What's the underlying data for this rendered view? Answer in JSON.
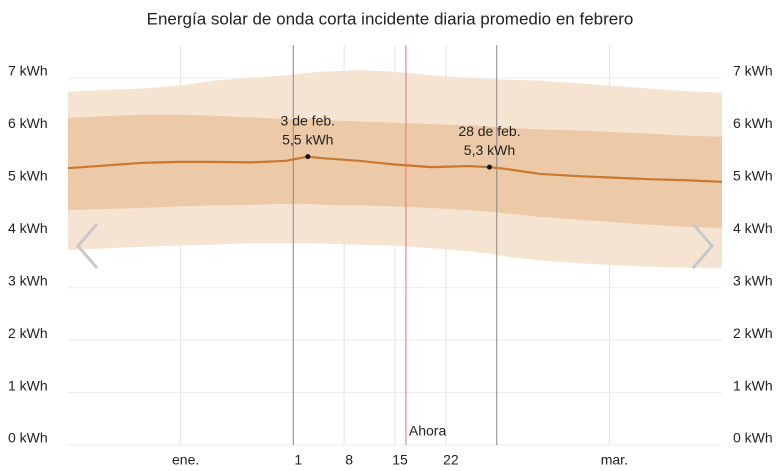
{
  "chart_data": {
    "type": "band-line",
    "title": "Energía solar de onda corta incidente diaria promedio en febrero",
    "x": [
      0,
      5,
      10,
      15,
      20,
      25,
      30,
      33,
      35,
      40,
      45,
      50,
      55,
      58,
      60,
      65,
      70,
      75,
      80,
      85,
      90
    ],
    "xlim": [
      0,
      90
    ],
    "xticks": [
      {
        "value": 15.5,
        "label": "ene."
      },
      {
        "value": 31,
        "label": "1"
      },
      {
        "value": 38,
        "label": "8"
      },
      {
        "value": 45,
        "label": "15"
      },
      {
        "value": 52,
        "label": "22"
      },
      {
        "value": 74.5,
        "label": "mar."
      }
    ],
    "month_lines": [
      31,
      59
    ],
    "now": {
      "x": 46.5,
      "label": "Ahora"
    },
    "ylim": [
      0,
      7
    ],
    "yticks": [
      {
        "value": 0,
        "label": "0 kWh"
      },
      {
        "value": 1,
        "label": "1 kWh"
      },
      {
        "value": 2,
        "label": "2 kWh"
      },
      {
        "value": 3,
        "label": "3 kWh"
      },
      {
        "value": 4,
        "label": "4 kWh"
      },
      {
        "value": 5,
        "label": "5 kWh"
      },
      {
        "value": 6,
        "label": "6 kWh"
      },
      {
        "value": 7,
        "label": "7 kWh"
      }
    ],
    "bands": [
      {
        "color": "#f6e4d3",
        "upper": [
          6.74,
          6.77,
          6.8,
          6.85,
          6.95,
          7.0,
          7.05,
          7.1,
          7.12,
          7.15,
          7.12,
          7.05,
          7.0,
          6.98,
          6.97,
          6.95,
          6.9,
          6.85,
          6.8,
          6.75,
          6.72
        ],
        "lower": [
          3.72,
          3.75,
          3.78,
          3.8,
          3.82,
          3.85,
          3.85,
          3.85,
          3.84,
          3.82,
          3.8,
          3.75,
          3.7,
          3.65,
          3.6,
          3.52,
          3.47,
          3.43,
          3.4,
          3.38,
          3.38
        ]
      },
      {
        "color": "#eccaa8",
        "upper": [
          6.24,
          6.27,
          6.3,
          6.3,
          6.28,
          6.25,
          6.22,
          6.22,
          6.2,
          6.17,
          6.15,
          6.12,
          6.1,
          6.08,
          6.05,
          6.02,
          6.0,
          5.97,
          5.94,
          5.9,
          5.88
        ],
        "lower": [
          4.48,
          4.5,
          4.52,
          4.55,
          4.57,
          4.58,
          4.6,
          4.6,
          4.58,
          4.57,
          4.55,
          4.52,
          4.48,
          4.45,
          4.42,
          4.35,
          4.3,
          4.25,
          4.2,
          4.16,
          4.14
        ]
      }
    ],
    "color": "#c8782f",
    "values": [
      5.28,
      5.33,
      5.38,
      5.4,
      5.4,
      5.39,
      5.42,
      5.5,
      5.47,
      5.42,
      5.35,
      5.3,
      5.32,
      5.3,
      5.27,
      5.17,
      5.13,
      5.1,
      5.07,
      5.05,
      5.02
    ],
    "annotations": [
      {
        "x": 33,
        "value": 5.5,
        "date": "3 de feb.",
        "label": "5,5 kWh"
      },
      {
        "x": 58,
        "value": 5.3,
        "date": "28 de feb.",
        "label": "5,3 kWh"
      }
    ],
    "grid": true
  }
}
